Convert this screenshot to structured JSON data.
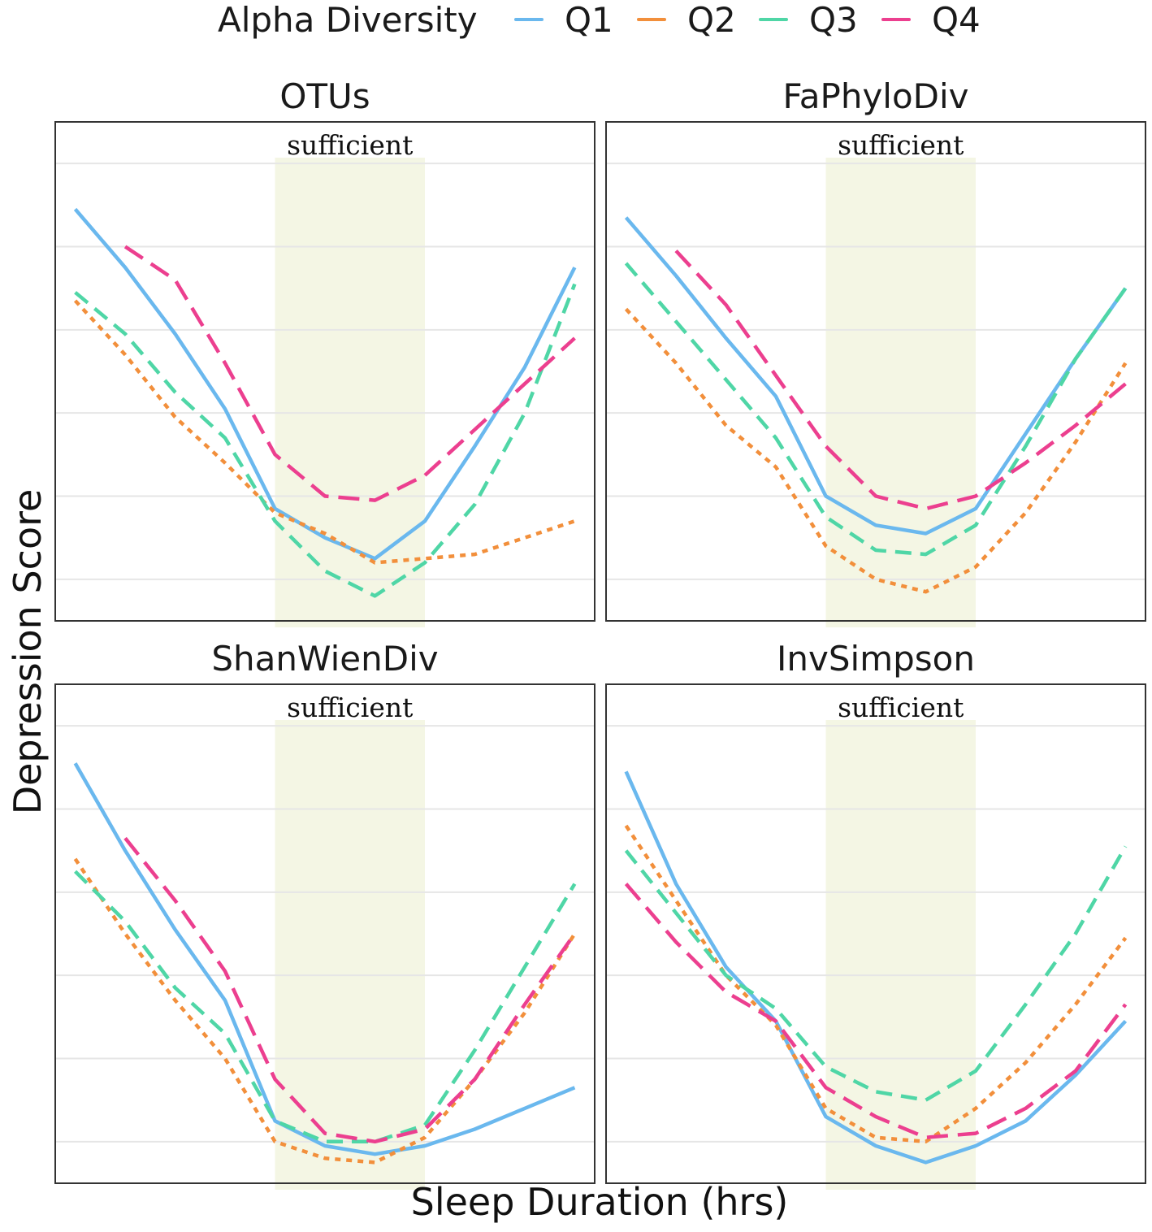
{
  "legend": {
    "title": "Alpha Diversity",
    "items": [
      {
        "label": "Q1",
        "color": "#6ab8ee",
        "dash": "solid"
      },
      {
        "label": "Q2",
        "color": "#f28f3b",
        "dash": "dotted"
      },
      {
        "label": "Q3",
        "color": "#4fd6a6",
        "dash": "dashed"
      },
      {
        "label": "Q4",
        "color": "#ec3f8f",
        "dash": "longdash"
      }
    ]
  },
  "axes": {
    "xlabel": "Sleep Duration (hrs)",
    "ylabel": "Depression Score"
  },
  "band": {
    "label": "sufficient",
    "color": "#f4f6e4"
  },
  "chart_data": [
    {
      "type": "line",
      "title": "OTUs",
      "x": [
        0,
        1,
        2,
        3,
        4,
        5,
        6,
        7,
        8,
        9,
        10
      ],
      "ylim": [
        0,
        10
      ],
      "band": [
        4,
        7
      ],
      "series": [
        {
          "name": "Q1",
          "values": [
            8.9,
            7.5,
            5.9,
            4.1,
            1.7,
            1.0,
            0.5,
            1.4,
            3.2,
            5.1,
            7.5
          ]
        },
        {
          "name": "Q2",
          "values": [
            6.7,
            5.4,
            3.9,
            2.8,
            1.6,
            1.1,
            0.4,
            0.5,
            0.6,
            1.0,
            1.4
          ]
        },
        {
          "name": "Q3",
          "values": [
            6.9,
            5.9,
            4.5,
            3.4,
            1.4,
            0.2,
            -0.4,
            0.4,
            1.8,
            4.0,
            7.1
          ]
        },
        {
          "name": "Q4",
          "values": [
            null,
            8.0,
            7.2,
            5.2,
            3.0,
            2.0,
            1.9,
            2.5,
            3.6,
            4.7,
            5.8
          ]
        }
      ]
    },
    {
      "type": "line",
      "title": "FaPhyloDiv",
      "x": [
        0,
        1,
        2,
        3,
        4,
        5,
        6,
        7,
        8,
        9,
        10
      ],
      "ylim": [
        0,
        10
      ],
      "band": [
        4,
        7
      ],
      "series": [
        {
          "name": "Q1",
          "values": [
            8.7,
            7.3,
            5.8,
            4.4,
            2.0,
            1.3,
            1.1,
            1.7,
            3.5,
            5.3,
            7.0
          ]
        },
        {
          "name": "Q2",
          "values": [
            6.5,
            5.2,
            3.7,
            2.7,
            0.8,
            0.0,
            -0.3,
            0.3,
            1.6,
            3.3,
            5.2
          ]
        },
        {
          "name": "Q3",
          "values": [
            7.6,
            6.2,
            4.8,
            3.4,
            1.5,
            0.7,
            0.6,
            1.3,
            3.2,
            5.3,
            7.0
          ]
        },
        {
          "name": "Q4",
          "values": [
            null,
            7.9,
            6.6,
            4.9,
            3.2,
            2.0,
            1.7,
            2.0,
            2.8,
            3.7,
            4.7
          ]
        }
      ]
    },
    {
      "type": "line",
      "title": "ShanWienDiv",
      "x": [
        0,
        1,
        2,
        3,
        4,
        5,
        6,
        7,
        8,
        9,
        10
      ],
      "ylim": [
        0,
        10
      ],
      "band": [
        4,
        7
      ],
      "series": [
        {
          "name": "Q1",
          "values": [
            9.1,
            7.0,
            5.1,
            3.4,
            0.5,
            -0.1,
            -0.3,
            -0.1,
            0.3,
            0.8,
            1.3
          ]
        },
        {
          "name": "Q2",
          "values": [
            6.8,
            5.0,
            3.4,
            2.0,
            0.0,
            -0.4,
            -0.5,
            0.1,
            1.5,
            3.1,
            5.0
          ]
        },
        {
          "name": "Q3",
          "values": [
            6.5,
            5.3,
            3.7,
            2.6,
            0.5,
            0.0,
            0.0,
            0.4,
            2.2,
            4.2,
            6.2
          ]
        },
        {
          "name": "Q4",
          "values": [
            null,
            7.3,
            5.8,
            4.1,
            1.5,
            0.2,
            0.0,
            0.3,
            1.5,
            3.3,
            5.0
          ]
        }
      ]
    },
    {
      "type": "line",
      "title": "InvSimpson",
      "x": [
        0,
        1,
        2,
        3,
        4,
        5,
        6,
        7,
        8,
        9,
        10
      ],
      "ylim": [
        0,
        10
      ],
      "band": [
        4,
        7
      ],
      "series": [
        {
          "name": "Q1",
          "values": [
            8.9,
            6.2,
            4.2,
            2.9,
            0.6,
            -0.1,
            -0.5,
            -0.1,
            0.5,
            1.6,
            2.9
          ]
        },
        {
          "name": "Q2",
          "values": [
            7.6,
            5.8,
            4.0,
            2.8,
            0.8,
            0.1,
            0.0,
            0.8,
            1.9,
            3.3,
            4.9
          ]
        },
        {
          "name": "Q3",
          "values": [
            7.0,
            5.5,
            4.0,
            3.2,
            1.8,
            1.2,
            1.0,
            1.7,
            3.3,
            5.0,
            7.1
          ]
        },
        {
          "name": "Q4",
          "values": [
            6.2,
            4.8,
            3.6,
            2.9,
            1.3,
            0.6,
            0.1,
            0.2,
            0.8,
            1.7,
            3.3
          ]
        }
      ]
    }
  ]
}
